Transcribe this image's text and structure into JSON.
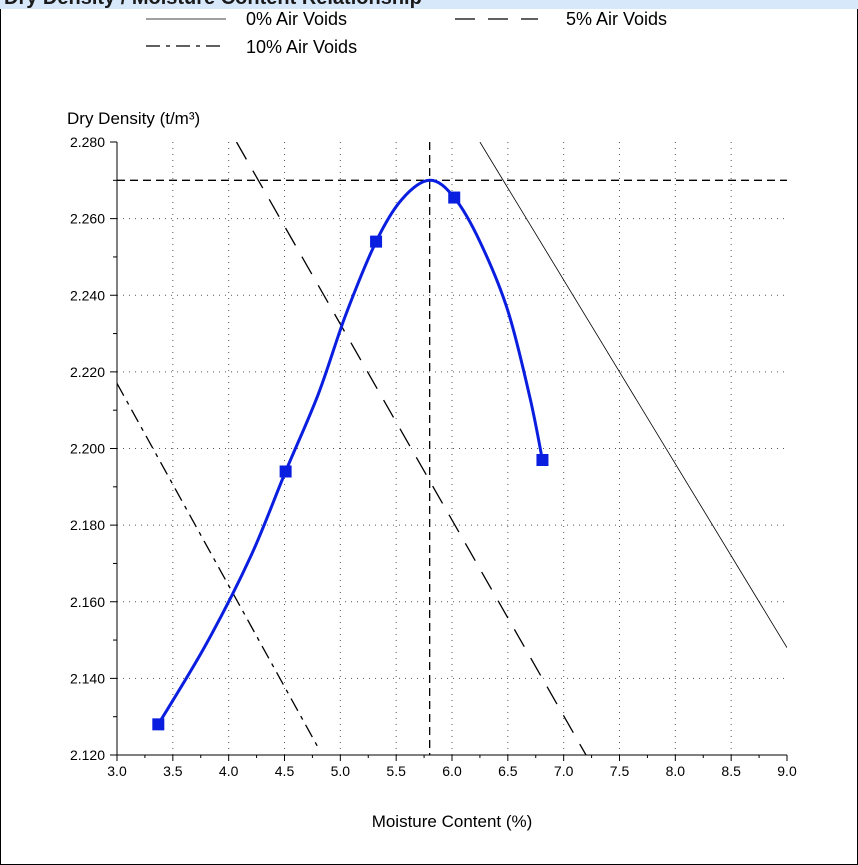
{
  "header": {
    "title": "Dry Density / Moisture Content Relationship"
  },
  "chart_data": {
    "type": "line",
    "title": "",
    "xlabel": "Moisture Content (%)",
    "ylabel": "Dry Density (t/m³)",
    "xlim": [
      3.0,
      9.0
    ],
    "ylim": [
      2.12,
      2.28
    ],
    "x_ticks": [
      "3.0",
      "3.5",
      "4.0",
      "4.5",
      "5.0",
      "5.5",
      "6.0",
      "6.5",
      "7.0",
      "7.5",
      "8.0",
      "8.5",
      "9.0"
    ],
    "y_ticks": [
      "2.120",
      "2.140",
      "2.160",
      "2.180",
      "2.200",
      "2.220",
      "2.240",
      "2.260",
      "2.280"
    ],
    "grid": true,
    "legend_position": "top",
    "colors": {
      "compaction": "#0a1ee0",
      "voids": "#000000",
      "frame": "#000000"
    },
    "measured_points": [
      {
        "x": 3.37,
        "y": 2.128
      },
      {
        "x": 4.51,
        "y": 2.194
      },
      {
        "x": 5.32,
        "y": 2.254
      },
      {
        "x": 6.02,
        "y": 2.2655
      },
      {
        "x": 6.81,
        "y": 2.197
      }
    ],
    "fitted_curve": [
      {
        "x": 3.37,
        "y": 2.128
      },
      {
        "x": 3.8,
        "y": 2.149
      },
      {
        "x": 4.2,
        "y": 2.172
      },
      {
        "x": 4.51,
        "y": 2.194
      },
      {
        "x": 4.8,
        "y": 2.214
      },
      {
        "x": 5.05,
        "y": 2.235
      },
      {
        "x": 5.32,
        "y": 2.254
      },
      {
        "x": 5.55,
        "y": 2.265
      },
      {
        "x": 5.8,
        "y": 2.27
      },
      {
        "x": 6.02,
        "y": 2.2655
      },
      {
        "x": 6.25,
        "y": 2.254
      },
      {
        "x": 6.5,
        "y": 2.236
      },
      {
        "x": 6.7,
        "y": 2.213
      },
      {
        "x": 6.81,
        "y": 2.197
      }
    ],
    "optimum": {
      "x": 5.8,
      "y": 2.27
    },
    "series": [
      {
        "name": "0% Air Voids",
        "style": "solid",
        "points": [
          {
            "x": 6.25,
            "y": 2.28
          },
          {
            "x": 9.0,
            "y": 2.148
          }
        ]
      },
      {
        "name": "5% Air Voids",
        "style": "dashed",
        "points": [
          {
            "x": 4.07,
            "y": 2.28
          },
          {
            "x": 7.2,
            "y": 2.12
          }
        ]
      },
      {
        "name": "10% Air Voids",
        "style": "dash-dot",
        "points": [
          {
            "x": 3.0,
            "y": 2.217
          },
          {
            "x": 4.8,
            "y": 2.122
          }
        ]
      }
    ]
  }
}
